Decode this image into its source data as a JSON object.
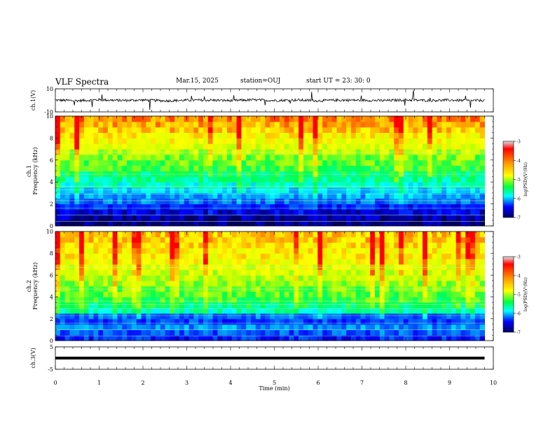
{
  "header": {
    "title": "VLF Spectra",
    "date": "Mar.15, 2025",
    "station": "station=OUJ",
    "start": "start  UT  =   23: 30: 0"
  },
  "colorbar": {
    "colors": [
      "#d8d8d8",
      "#ff0000",
      "#ff8000",
      "#ffff00",
      "#00ff00",
      "#00ffff",
      "#0000ff",
      "#000080"
    ],
    "ticks": [
      "-3",
      "-4",
      "-5",
      "-6",
      "-7"
    ],
    "label": "log(PSD)(V²/Hz)"
  },
  "chart_data": [
    {
      "type": "line",
      "name": "ch1-waveform",
      "ylabel": "ch.1(V)",
      "ylim": [
        -10,
        10
      ],
      "yticks": [
        "10",
        "-10"
      ],
      "x": [
        0,
        0.5,
        1,
        1.5,
        2,
        2.5,
        3,
        3.5,
        4,
        4.5,
        5,
        5.5,
        6,
        6.5,
        7,
        7.5,
        8,
        8.5,
        9,
        9.5,
        9.8
      ],
      "y": [
        0.2,
        -0.3,
        0.5,
        -0.1,
        0.3,
        -0.4,
        0.1,
        0.2,
        -0.2,
        0.4,
        -0.1,
        0.3,
        -0.3,
        0.2,
        0.1,
        -0.2,
        0.4,
        -0.1,
        0.2,
        -0.3,
        0.1
      ]
    },
    {
      "type": "heatmap",
      "name": "ch1-spectrogram",
      "ylabel": "ch.1\nFrequency (kHz)",
      "ylim": [
        0,
        10
      ],
      "yticks": [
        "0",
        "2",
        "4",
        "6",
        "8",
        "10"
      ],
      "color_range": [
        -7,
        -3
      ],
      "freq_kHz": [
        0.25,
        0.75,
        1.25,
        1.75,
        2.25,
        2.75,
        3.25,
        3.75,
        4.25,
        4.75,
        5.25,
        5.75,
        6.25,
        6.75,
        7.25,
        7.75,
        8.25,
        8.75,
        9.25,
        9.75
      ],
      "level_log_psd": [
        -6.9,
        -6.8,
        -6.6,
        -6.4,
        -6.1,
        -5.9,
        -5.7,
        -5.5,
        -5.3,
        -5.2,
        -5.0,
        -4.9,
        -4.8,
        -4.6,
        -4.4,
        -4.3,
        -4.2,
        -4.0,
        -3.9,
        -3.8
      ]
    },
    {
      "type": "heatmap",
      "name": "ch2-spectrogram",
      "ylabel": "ch.2\nFrequency (kHz)",
      "ylim": [
        0,
        10
      ],
      "yticks": [
        "0",
        "2",
        "4",
        "6",
        "8",
        "10"
      ],
      "color_range": [
        -7,
        -3
      ],
      "freq_kHz": [
        0.25,
        0.75,
        1.25,
        1.75,
        2.25,
        2.75,
        3.25,
        3.75,
        4.25,
        4.75,
        5.25,
        5.75,
        6.25,
        6.75,
        7.25,
        7.75,
        8.25,
        8.75,
        9.25,
        9.75
      ],
      "level_log_psd": [
        -6.4,
        -6.2,
        -6.0,
        -6.3,
        -6.1,
        -5.4,
        -5.2,
        -5.0,
        -4.9,
        -4.8,
        -4.7,
        -4.6,
        -4.5,
        -4.4,
        -4.3,
        -4.2,
        -4.2,
        -4.1,
        -4.0,
        -4.0
      ]
    },
    {
      "type": "line",
      "name": "ch3-waveform",
      "ylabel": "ch.3(V)",
      "ylim": [
        -5,
        5
      ],
      "yticks": [
        "5",
        "-5"
      ],
      "x": [
        0,
        9.8
      ],
      "y": [
        0,
        0
      ]
    }
  ],
  "xaxis": {
    "label": "Time (min)",
    "ticks": [
      "0",
      "1",
      "2",
      "3",
      "4",
      "5",
      "6",
      "7",
      "8",
      "9",
      "10"
    ],
    "xlim": [
      0,
      10
    ]
  }
}
